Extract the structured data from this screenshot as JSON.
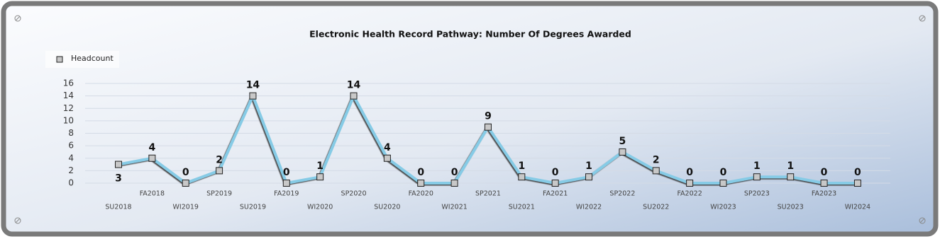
{
  "chart_data": {
    "type": "line",
    "title": "Electronic Health Record Pathway: Number Of Degrees Awarded",
    "categories": [
      "SU2018",
      "FA2018",
      "WI2019",
      "SP2019",
      "SU2019",
      "FA2019",
      "WI2020",
      "SP2020",
      "SU2020",
      "FA2020",
      "WI2021",
      "SP2021",
      "SU2021",
      "FA2021",
      "WI2022",
      "SP2022",
      "SU2022",
      "FA2022",
      "WI2023",
      "SP2023",
      "SU2023",
      "FA2023",
      "WI2024"
    ],
    "series": [
      {
        "name": "Headcount",
        "color": "#86cbe6",
        "values": [
          3,
          4,
          0,
          2,
          14,
          0,
          1,
          14,
          4,
          0,
          0,
          9,
          1,
          0,
          1,
          5,
          2,
          0,
          0,
          1,
          1,
          0,
          0
        ]
      }
    ],
    "ylim": [
      0,
      16
    ],
    "yticks": [
      0,
      2,
      4,
      6,
      8,
      10,
      12,
      14,
      16
    ],
    "grid": true,
    "legend": "top-left"
  }
}
